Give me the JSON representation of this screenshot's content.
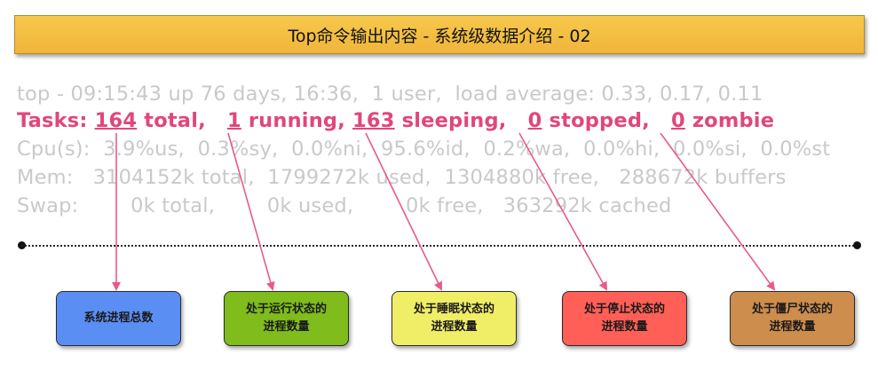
{
  "title": "Top命令输出内容 - 系统级数据介绍 - 02",
  "top_output": {
    "line1": "top - 09:15:43 up 76 days, 16:36,  1 user,  load average: 0.33, 0.17, 0.11",
    "tasks": {
      "prefix": "Tasks: ",
      "total": "164",
      "total_label": " total,   ",
      "running": "1",
      "running_label": " running, ",
      "sleeping": "163",
      "sleeping_label": " sleeping,   ",
      "stopped": "0",
      "stopped_label": " stopped,   ",
      "zombie": "0",
      "zombie_label": " zombie"
    },
    "cpu": "Cpu(s):  3.9%us,  0.3%sy,  0.0%ni,  95.6%id,  0.2%wa,  0.0%hi,  0.0%si,  0.0%st",
    "mem": "Mem:   3104152k total,  1799272k used,  1304880k free,   288672k buffers",
    "swap": "Swap:        0k total,        0k used,        0k free,   363292k cached"
  },
  "labels": {
    "total": [
      "系统进程总数"
    ],
    "running": [
      "处于运行状态的",
      "进程数量"
    ],
    "sleeping": [
      "处于睡眠状态的",
      "进程数量"
    ],
    "stopped": [
      "处于停止状态的",
      "进程数量"
    ],
    "zombie": [
      "处于僵尸状态的",
      "进程数量"
    ]
  },
  "colors": {
    "highlight": "#e0477a",
    "arrow": "#e85a8a",
    "total_box": "#5b8ef2",
    "running_box": "#7fbc1c",
    "sleeping_box": "#f0ee66",
    "stopped_box": "#ff5f57",
    "zombie_box": "#cd8d4d"
  }
}
